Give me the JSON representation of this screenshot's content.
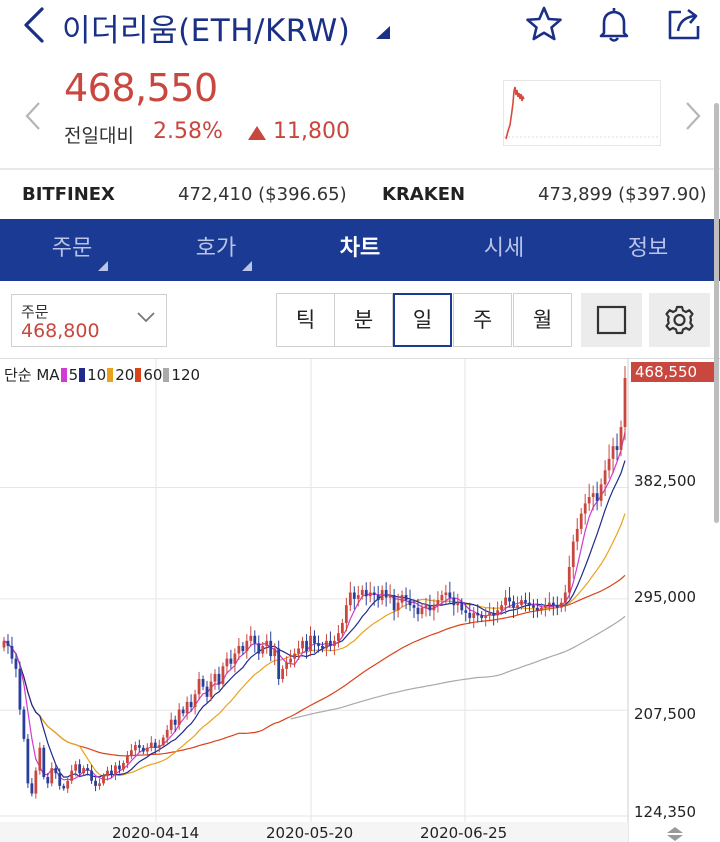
{
  "header": {
    "title": "이더리움(ETH/KRW)",
    "icons": [
      "back-icon",
      "star-icon",
      "bell-icon",
      "share-icon"
    ]
  },
  "ticker": {
    "price": "468,550",
    "change_label": "전일대비",
    "change_pct": "2.58%",
    "change_amount": "11,800",
    "price_color": "#c8473e"
  },
  "exchanges": [
    {
      "name": "BITFINEX",
      "value": "472,410 ($396.65)"
    },
    {
      "name": "KRAKEN",
      "value": "473,899 ($397.90)"
    }
  ],
  "tabs": [
    {
      "label": "주문",
      "has_menu": true,
      "active": false
    },
    {
      "label": "호가",
      "has_menu": true,
      "active": false
    },
    {
      "label": "차트",
      "has_menu": false,
      "active": true
    },
    {
      "label": "시세",
      "has_menu": false,
      "active": false
    },
    {
      "label": "정보",
      "has_menu": false,
      "active": false
    }
  ],
  "order": {
    "label": "주문",
    "value": "468,800"
  },
  "periods": [
    {
      "label": "틱",
      "active": false
    },
    {
      "label": "분",
      "active": false
    },
    {
      "label": "일",
      "active": true
    },
    {
      "label": "주",
      "active": false
    },
    {
      "label": "월",
      "active": false
    }
  ],
  "colors": {
    "accent": "#1a3a94",
    "up": "#c8473e",
    "down": "#2a3f9c"
  },
  "chart_data": {
    "type": "candlestick",
    "ma_legend": {
      "prefix": "단순 MA",
      "items": [
        {
          "period": "5",
          "color": "#d23ad3"
        },
        {
          "period": "10",
          "color": "#1e2a8c"
        },
        {
          "period": "20",
          "color": "#e8a21d"
        },
        {
          "period": "60",
          "color": "#d9431c"
        },
        {
          "period": "120",
          "color": "#a9a9a9"
        }
      ]
    },
    "y_ticks": [
      "382,500",
      "295,000",
      "207,500",
      "124,350"
    ],
    "y_tick_values": [
      382500,
      295000,
      207500,
      124350
    ],
    "current_price_label": "468,550",
    "current_price": 468550,
    "x_ticks": [
      "2020-04-14",
      "2020-05-20",
      "2020-06-25"
    ],
    "closes": [
      262000,
      258000,
      248000,
      240000,
      208000,
      185000,
      150000,
      142000,
      160000,
      178000,
      155000,
      150000,
      162000,
      158000,
      148000,
      146000,
      152000,
      160000,
      165000,
      158000,
      162000,
      160000,
      152000,
      148000,
      150000,
      156000,
      160000,
      157000,
      164000,
      161000,
      166000,
      172000,
      176000,
      180000,
      178000,
      175000,
      178000,
      182000,
      178000,
      180000,
      186000,
      192000,
      200000,
      196000,
      208000,
      205000,
      214000,
      210000,
      220000,
      232000,
      226000,
      218000,
      230000,
      236000,
      228000,
      242000,
      248000,
      244000,
      252000,
      258000,
      254000,
      262000,
      266000,
      260000,
      252000,
      258000,
      262000,
      250000,
      256000,
      232000,
      240000,
      245000,
      248000,
      252000,
      256000,
      262000,
      254000,
      266000,
      260000,
      258000,
      256000,
      262000,
      258000,
      262000,
      268000,
      276000,
      290000,
      300000,
      295000,
      298000,
      302000,
      297000,
      300000,
      298000,
      294000,
      302000,
      296000,
      298000,
      286000,
      292000,
      298000,
      294000,
      290000,
      288000,
      283000,
      288000,
      290000,
      286000,
      290000,
      294000,
      298000,
      300000,
      296000,
      290000,
      292000,
      286000,
      284000,
      280000,
      284000,
      282000,
      280000,
      282000,
      284000,
      282000,
      286000,
      290000,
      296000,
      293000,
      288000,
      290000,
      294000,
      292000,
      290000,
      288000,
      286000,
      288000,
      290000,
      292000,
      290000,
      288000,
      292000,
      300000,
      320000,
      340000,
      350000,
      362000,
      370000,
      375000,
      378000,
      372000,
      385000,
      396000,
      405000,
      415000,
      412000,
      430000,
      468550
    ]
  }
}
